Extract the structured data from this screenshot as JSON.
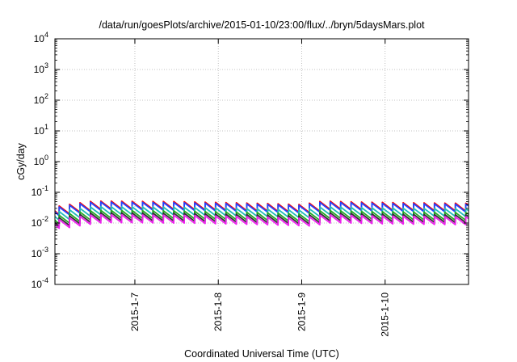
{
  "chart_data": {
    "type": "line",
    "title": "/data/run/goesPlots/archive/2015-01-10/23:00/flux/../bryn/5daysMars.plot",
    "xlabel": "Coordinated Universal Time (UTC)",
    "ylabel": "cGy/day",
    "yscale": "log",
    "ylim": [
      0.0001,
      10000
    ],
    "y_ticks": [
      {
        "value": 0.0001,
        "base": "10",
        "exp": "-4"
      },
      {
        "value": 0.001,
        "base": "10",
        "exp": "-3"
      },
      {
        "value": 0.01,
        "base": "10",
        "exp": "-2"
      },
      {
        "value": 0.1,
        "base": "10",
        "exp": "-1"
      },
      {
        "value": 1,
        "base": "10",
        "exp": "0"
      },
      {
        "value": 10,
        "base": "10",
        "exp": "1"
      },
      {
        "value": 100,
        "base": "10",
        "exp": "2"
      },
      {
        "value": 1000,
        "base": "10",
        "exp": "3"
      },
      {
        "value": 10000,
        "base": "10",
        "exp": "4"
      }
    ],
    "xlim": [
      "2015-01-06T01:00",
      "2015-01-11T00:00"
    ],
    "x_ticks": [
      {
        "value": "2015-01-07T00:00",
        "label": "2015-1-7"
      },
      {
        "value": "2015-01-08T00:00",
        "label": "2015-1-8"
      },
      {
        "value": "2015-01-09T00:00",
        "label": "2015-1-9"
      },
      {
        "value": "2015-01-10T00:00",
        "label": "2015-1-10"
      }
    ],
    "grid": true,
    "sawtooth_period_hours": 3,
    "series": [
      {
        "color": "#ff0000",
        "level_scale": 1.0,
        "envelope": [
          [
            "2015-01-06T01:00",
            0.034
          ],
          [
            "2015-01-06T12:00",
            0.052
          ],
          [
            "2015-01-07T12:00",
            0.05
          ],
          [
            "2015-01-08T12:00",
            0.044
          ],
          [
            "2015-01-09T00:00",
            0.04
          ],
          [
            "2015-01-09T06:00",
            0.052
          ],
          [
            "2015-01-09T18:00",
            0.048
          ],
          [
            "2015-01-10T06:00",
            0.046
          ],
          [
            "2015-01-10T23:59",
            0.044
          ]
        ]
      },
      {
        "color": "#2244ff",
        "level_scale": 0.93,
        "envelope": [
          [
            "2015-01-06T01:00",
            0.034
          ],
          [
            "2015-01-06T12:00",
            0.052
          ],
          [
            "2015-01-07T12:00",
            0.05
          ],
          [
            "2015-01-08T12:00",
            0.044
          ],
          [
            "2015-01-09T00:00",
            0.04
          ],
          [
            "2015-01-09T06:00",
            0.052
          ],
          [
            "2015-01-09T18:00",
            0.048
          ],
          [
            "2015-01-10T06:00",
            0.046
          ],
          [
            "2015-01-10T23:59",
            0.044
          ]
        ]
      },
      {
        "color": "#22bbbb",
        "level_scale": 0.66,
        "envelope": [
          [
            "2015-01-06T01:00",
            0.034
          ],
          [
            "2015-01-06T12:00",
            0.052
          ],
          [
            "2015-01-07T12:00",
            0.05
          ],
          [
            "2015-01-08T12:00",
            0.044
          ],
          [
            "2015-01-09T00:00",
            0.04
          ],
          [
            "2015-01-09T06:00",
            0.052
          ],
          [
            "2015-01-09T18:00",
            0.048
          ],
          [
            "2015-01-10T06:00",
            0.046
          ],
          [
            "2015-01-10T23:59",
            0.044
          ]
        ]
      },
      {
        "color": "#22aa22",
        "level_scale": 0.5,
        "envelope": [
          [
            "2015-01-06T01:00",
            0.034
          ],
          [
            "2015-01-06T12:00",
            0.052
          ],
          [
            "2015-01-07T12:00",
            0.05
          ],
          [
            "2015-01-08T12:00",
            0.044
          ],
          [
            "2015-01-09T00:00",
            0.04
          ],
          [
            "2015-01-09T06:00",
            0.052
          ],
          [
            "2015-01-09T18:00",
            0.048
          ],
          [
            "2015-01-10T06:00",
            0.046
          ],
          [
            "2015-01-10T23:59",
            0.044
          ]
        ]
      },
      {
        "color": "#333333",
        "level_scale": 0.42,
        "envelope": [
          [
            "2015-01-06T01:00",
            0.034
          ],
          [
            "2015-01-06T12:00",
            0.052
          ],
          [
            "2015-01-07T12:00",
            0.05
          ],
          [
            "2015-01-08T12:00",
            0.044
          ],
          [
            "2015-01-09T00:00",
            0.04
          ],
          [
            "2015-01-09T06:00",
            0.052
          ],
          [
            "2015-01-09T18:00",
            0.048
          ],
          [
            "2015-01-10T06:00",
            0.046
          ],
          [
            "2015-01-10T23:59",
            0.044
          ]
        ]
      },
      {
        "color": "#ee22ee",
        "level_scale": 0.36,
        "envelope": [
          [
            "2015-01-06T01:00",
            0.034
          ],
          [
            "2015-01-06T12:00",
            0.052
          ],
          [
            "2015-01-07T12:00",
            0.05
          ],
          [
            "2015-01-08T12:00",
            0.044
          ],
          [
            "2015-01-09T00:00",
            0.04
          ],
          [
            "2015-01-09T06:00",
            0.052
          ],
          [
            "2015-01-09T18:00",
            0.048
          ],
          [
            "2015-01-10T06:00",
            0.046
          ],
          [
            "2015-01-10T23:59",
            0.044
          ]
        ]
      }
    ]
  }
}
